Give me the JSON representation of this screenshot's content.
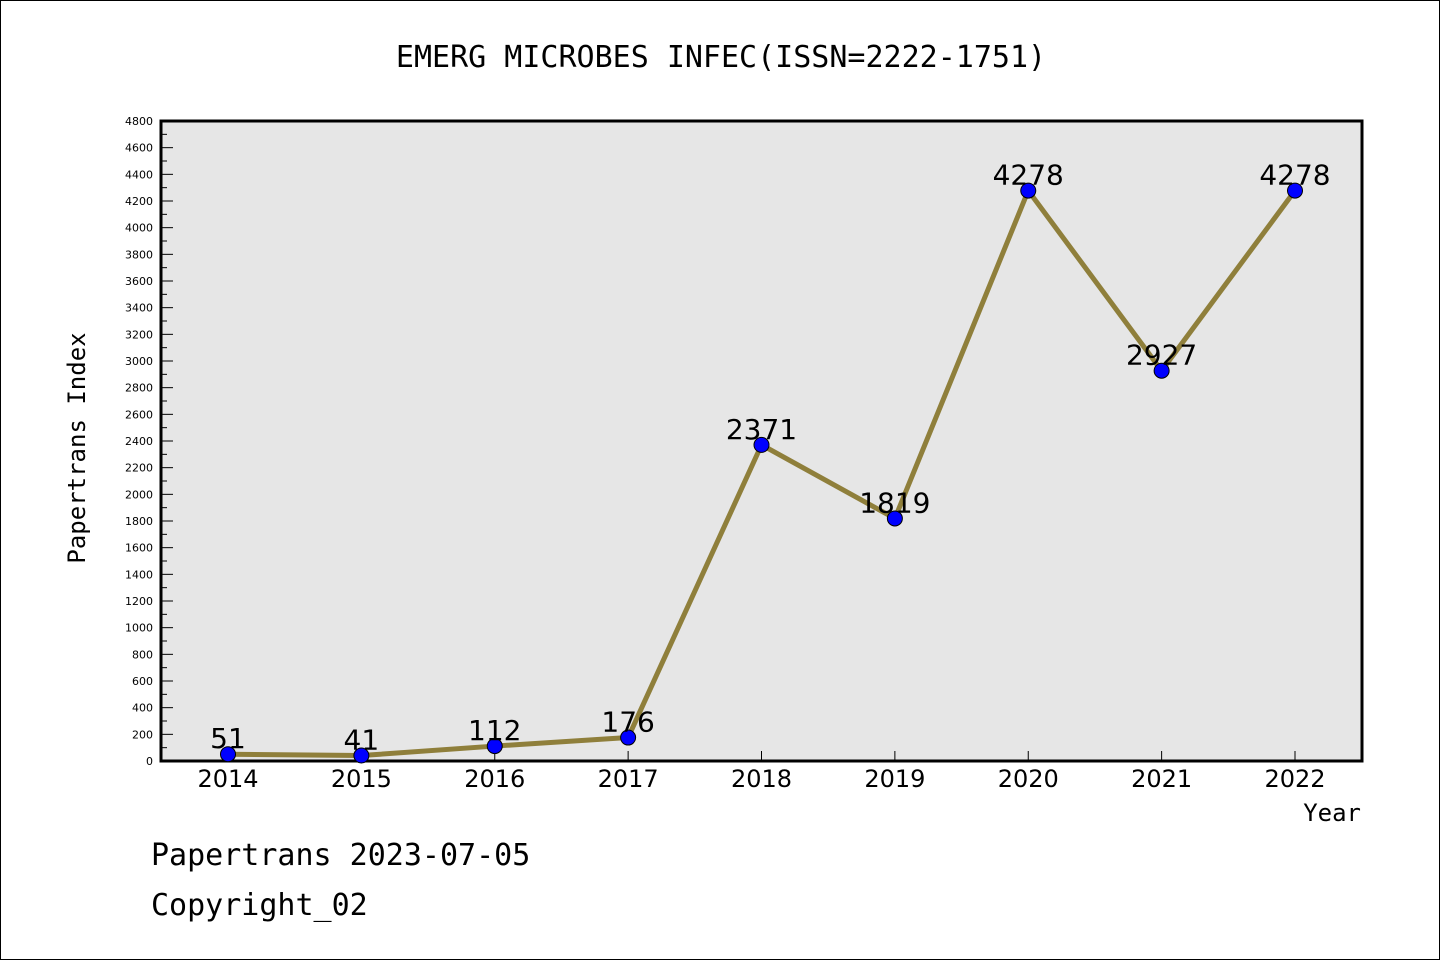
{
  "chart_data": {
    "type": "line",
    "title": "EMERG MICROBES INFEC(ISSN=2222-1751)",
    "xlabel": "Year",
    "ylabel": "Papertrans Index",
    "categories": [
      "2014",
      "2015",
      "2016",
      "2017",
      "2018",
      "2019",
      "2020",
      "2021",
      "2022"
    ],
    "values": [
      51,
      41,
      112,
      176,
      2371,
      1819,
      4278,
      2927,
      4278
    ],
    "data_labels": [
      "51",
      "41",
      "112",
      "176",
      "2371",
      "1819",
      "4278",
      "2927",
      "4278"
    ],
    "ylim": [
      0,
      4800
    ],
    "y_ticks": [
      "0",
      "200",
      "400",
      "600",
      "800",
      "1000",
      "1200",
      "1400",
      "1600",
      "1800",
      "2000",
      "2200",
      "2400",
      "2600",
      "2800",
      "3000",
      "3200",
      "3400",
      "3600",
      "3800",
      "4000",
      "4200",
      "4400",
      "4600",
      "4800"
    ],
    "grid": false,
    "legend": "none",
    "colors": {
      "line": "#8f7f3b",
      "marker": "#0000ff",
      "plot_background": "#e6e6e6"
    }
  },
  "footer": {
    "line1": "Papertrans 2023-07-05",
    "line2": "Copyright_02"
  }
}
